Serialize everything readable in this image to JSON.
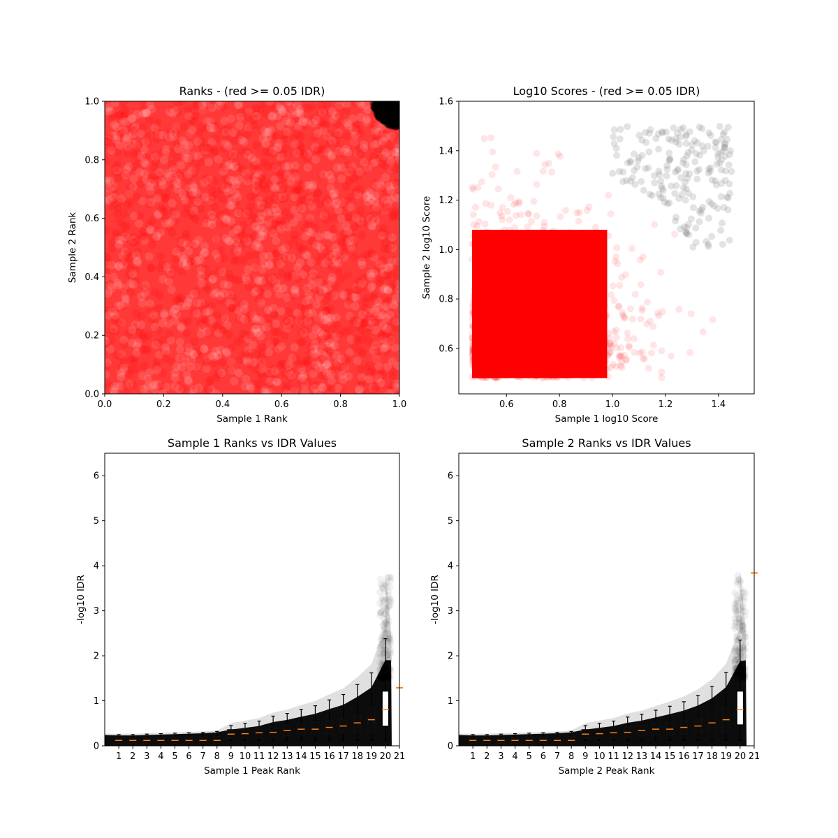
{
  "chart_data": [
    {
      "type": "scatter",
      "title": "Ranks - (red >= 0.05 IDR)",
      "xlabel": "Sample 1 Rank",
      "ylabel": "Sample 2 Rank",
      "xlim": [
        0,
        1
      ],
      "ylim": [
        0,
        1
      ],
      "xticks": [
        "0.0",
        "0.2",
        "0.4",
        "0.6",
        "0.8",
        "1.0"
      ],
      "yticks": [
        "0.0",
        "0.2",
        "0.4",
        "0.6",
        "0.8",
        "1.0"
      ],
      "colors": {
        "idr_above_threshold": "#ff0000",
        "idr_below_threshold": "#000000"
      },
      "description_of_points": "uniform cloud of red points over [0,1]x[0,1]; black points in the top-right corner near (1,1)"
    },
    {
      "type": "scatter",
      "title": "Log10 Scores - (red >= 0.05 IDR)",
      "xlabel": "Sample 1 log10 Score",
      "ylabel": "Sample 2 log10 Score",
      "xlim": [
        0.42,
        1.535
      ],
      "ylim": [
        0.416,
        1.6
      ],
      "xticks": [
        "0.6",
        "0.8",
        "1.0",
        "1.2",
        "1.4"
      ],
      "yticks": [
        "0.6",
        "0.8",
        "1.0",
        "1.2",
        "1.4",
        "1.6"
      ],
      "colors": {
        "idr_above_threshold": "#ff0000",
        "idr_below_threshold": "#808080"
      }
    },
    {
      "type": "box",
      "title": "Sample 1 Ranks vs IDR Values",
      "xlabel": "Sample 1 Peak Rank",
      "ylabel": "-log10 IDR",
      "xlim": [
        0,
        21
      ],
      "ylim": [
        0,
        6.5
      ],
      "xticks": [
        "1",
        "2",
        "3",
        "4",
        "5",
        "6",
        "7",
        "8",
        "9",
        "10",
        "11",
        "12",
        "13",
        "14",
        "15",
        "16",
        "17",
        "18",
        "19",
        "20",
        "21"
      ],
      "yticks": [
        "0",
        "1",
        "2",
        "3",
        "4",
        "5",
        "6"
      ],
      "boxes": {
        "median": [
          0.12,
          0.12,
          0.12,
          0.12,
          0.12,
          0.12,
          0.12,
          0.12,
          0.26,
          0.27,
          0.29,
          0.3,
          0.34,
          0.37,
          0.37,
          0.41,
          0.44,
          0.51,
          0.58,
          0.81
        ],
        "q1": [
          0.05,
          0.05,
          0.05,
          0.05,
          0.05,
          0.05,
          0.05,
          0.05,
          0.16,
          0.17,
          0.19,
          0.2,
          0.22,
          0.24,
          0.24,
          0.26,
          0.28,
          0.3,
          0.3,
          0.43
        ],
        "q3": [
          0.18,
          0.18,
          0.18,
          0.19,
          0.19,
          0.2,
          0.2,
          0.21,
          0.36,
          0.38,
          0.4,
          0.42,
          0.46,
          0.5,
          0.52,
          0.56,
          0.6,
          0.68,
          0.86,
          1.22
        ],
        "whislo": [
          0,
          0,
          0,
          0,
          0,
          0,
          0,
          0,
          0.12,
          0.12,
          0.12,
          0.12,
          0.12,
          0.12,
          0.12,
          0.12,
          0.12,
          0.12,
          0.12,
          0.12
        ],
        "whishi": [
          0.25,
          0.25,
          0.26,
          0.27,
          0.28,
          0.29,
          0.3,
          0.32,
          0.45,
          0.5,
          0.55,
          0.66,
          0.72,
          0.81,
          0.89,
          1.02,
          1.14,
          1.36,
          1.62,
          2.38
        ]
      },
      "extra_median": {
        "x": 21,
        "y": 1.29
      },
      "colors": {
        "median": "#ff7f0e",
        "points": "#000000"
      }
    },
    {
      "type": "box",
      "title": "Sample 2 Ranks vs IDR Values",
      "xlabel": "Sample 2 Peak Rank",
      "ylabel": "-log10 IDR",
      "xlim": [
        0,
        21
      ],
      "ylim": [
        0,
        6.5
      ],
      "xticks": [
        "1",
        "2",
        "3",
        "4",
        "5",
        "6",
        "7",
        "8",
        "9",
        "10",
        "11",
        "12",
        "13",
        "14",
        "15",
        "16",
        "17",
        "18",
        "19",
        "20",
        "21"
      ],
      "yticks": [
        "0",
        "1",
        "2",
        "3",
        "4",
        "5",
        "6"
      ],
      "boxes": {
        "median": [
          0.12,
          0.12,
          0.12,
          0.12,
          0.12,
          0.12,
          0.12,
          0.12,
          0.26,
          0.27,
          0.29,
          0.3,
          0.34,
          0.37,
          0.37,
          0.41,
          0.44,
          0.51,
          0.58,
          0.81
        ],
        "q1": [
          0.05,
          0.05,
          0.05,
          0.05,
          0.05,
          0.05,
          0.05,
          0.05,
          0.16,
          0.17,
          0.19,
          0.2,
          0.22,
          0.24,
          0.24,
          0.26,
          0.28,
          0.3,
          0.3,
          0.46
        ],
        "q3": [
          0.18,
          0.18,
          0.18,
          0.19,
          0.19,
          0.2,
          0.2,
          0.21,
          0.36,
          0.38,
          0.4,
          0.42,
          0.46,
          0.5,
          0.52,
          0.56,
          0.6,
          0.68,
          0.86,
          1.22
        ],
        "whislo": [
          0,
          0,
          0,
          0,
          0,
          0,
          0,
          0,
          0.12,
          0.12,
          0.12,
          0.12,
          0.12,
          0.12,
          0.12,
          0.12,
          0.12,
          0.12,
          0.12,
          0.12
        ],
        "whishi": [
          0.25,
          0.25,
          0.26,
          0.27,
          0.28,
          0.29,
          0.3,
          0.32,
          0.45,
          0.5,
          0.55,
          0.64,
          0.7,
          0.79,
          0.88,
          0.98,
          1.12,
          1.32,
          1.63,
          2.35
        ]
      },
      "extra_median": {
        "x": 21,
        "y": 3.84
      },
      "colors": {
        "median": "#ff7f0e",
        "points": "#000000"
      }
    }
  ]
}
